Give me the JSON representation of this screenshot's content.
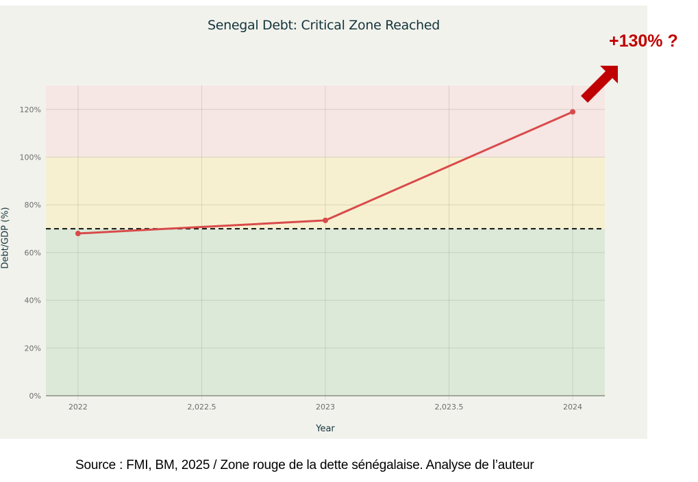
{
  "chart_data": {
    "type": "line",
    "title": "Senegal Debt: Critical Zone Reached",
    "xlabel": "Year",
    "ylabel": "Debt/GDP (%)",
    "x": [
      2022,
      2023,
      2024
    ],
    "series": [
      {
        "name": "Debt/GDP (%)",
        "values": [
          68,
          73.5,
          119
        ],
        "color": "#d94a4a"
      }
    ],
    "x_tick_labels": [
      "2022",
      "2,022.5",
      "2023",
      "2,023.5",
      "2024"
    ],
    "y_tick_labels": [
      "0%",
      "20%",
      "40%",
      "60%",
      "80%",
      "100%",
      "120%"
    ],
    "ylim": [
      0,
      130
    ],
    "xlim": [
      2021.87,
      2024.13
    ],
    "grid": true,
    "zones": [
      {
        "name": "safe",
        "from": 0,
        "to": 70,
        "color": "#dce9d8"
      },
      {
        "name": "warning",
        "from": 70,
        "to": 100,
        "color": "#f6f0d0"
      },
      {
        "name": "critical",
        "from": 100,
        "to": 130,
        "color": "#f6e6e4"
      }
    ],
    "threshold_line": {
      "value": 70,
      "style": "dashed",
      "color": "#000000"
    },
    "annotations": [
      {
        "text": "+130% ?",
        "color": "#c00000",
        "arrow": "up-right"
      }
    ]
  },
  "annotation": {
    "label": "+130% ?"
  },
  "source_caption": "Source : FMI, BM, 2025 / Zone rouge de la dette sénégalaise. Analyse de l’auteur"
}
